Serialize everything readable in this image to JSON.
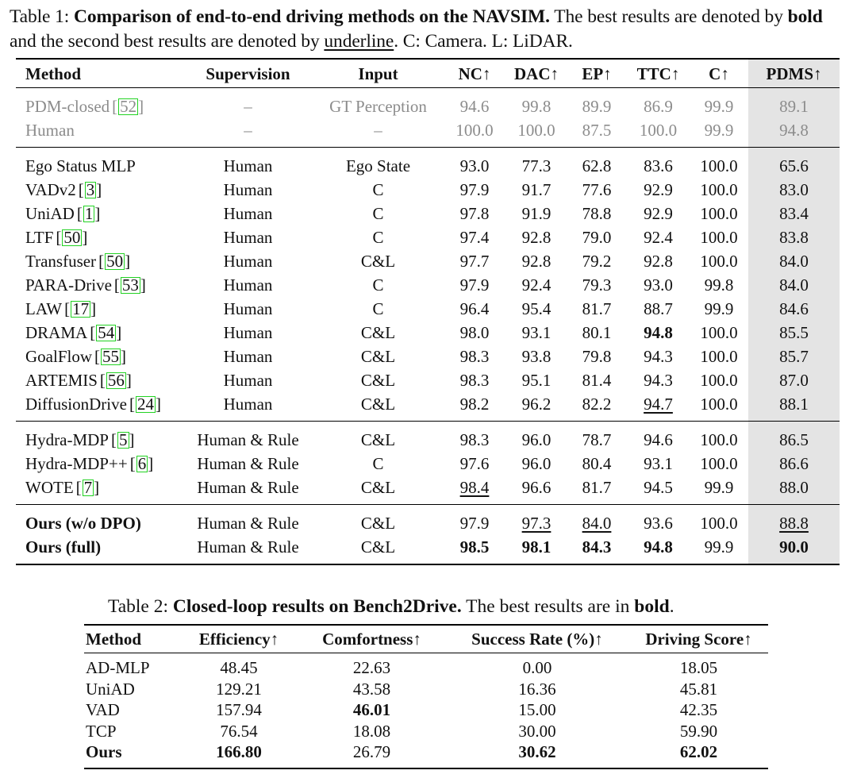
{
  "table1": {
    "caption": {
      "label": "Table 1:",
      "title": "Comparison of end-to-end driving methods on the NAVSIM.",
      "desc1": "The best results are denoted by",
      "bold_word": "bold",
      "desc2": "and the second best results are denoted by",
      "underline_word": "underline",
      "desc3": ". C: Camera. L: LiDAR."
    },
    "headers": [
      "Method",
      "Supervision",
      "Input",
      "NC↑",
      "DAC↑",
      "EP↑",
      "TTC↑",
      "C↑",
      "PDMS↑"
    ],
    "groups": [
      {
        "style": "gray",
        "rows": [
          {
            "method": "PDM-closed",
            "ref": "52",
            "supervision": "–",
            "input": "GT Perception",
            "nc": "94.6",
            "dac": "99.8",
            "ep": "89.9",
            "ttc": "86.9",
            "c": "99.9",
            "pdms": "89.1"
          },
          {
            "method": "Human",
            "ref": "",
            "supervision": "–",
            "input": "–",
            "nc": "100.0",
            "dac": "100.0",
            "ep": "87.5",
            "ttc": "100.0",
            "c": "99.9",
            "pdms": "94.8"
          }
        ]
      },
      {
        "style": "normal",
        "rows": [
          {
            "method": "Ego Status MLP",
            "ref": "",
            "supervision": "Human",
            "input": "Ego State",
            "nc": "93.0",
            "dac": "77.3",
            "ep": "62.8",
            "ttc": "83.6",
            "c": "100.0",
            "pdms": "65.6"
          },
          {
            "method": "VADv2",
            "ref": "3",
            "supervision": "Human",
            "input": "C",
            "nc": "97.9",
            "dac": "91.7",
            "ep": "77.6",
            "ttc": "92.9",
            "c": "100.0",
            "pdms": "83.0"
          },
          {
            "method": "UniAD",
            "ref": "1",
            "supervision": "Human",
            "input": "C",
            "nc": "97.8",
            "dac": "91.9",
            "ep": "78.8",
            "ttc": "92.9",
            "c": "100.0",
            "pdms": "83.4"
          },
          {
            "method": "LTF",
            "ref": "50",
            "supervision": "Human",
            "input": "C",
            "nc": "97.4",
            "dac": "92.8",
            "ep": "79.0",
            "ttc": "92.4",
            "c": "100.0",
            "pdms": "83.8"
          },
          {
            "method": "Transfuser",
            "ref": "50",
            "supervision": "Human",
            "input": "C&L",
            "nc": "97.7",
            "dac": "92.8",
            "ep": "79.2",
            "ttc": "92.8",
            "c": "100.0",
            "pdms": "84.0"
          },
          {
            "method": "PARA-Drive",
            "ref": "53",
            "supervision": "Human",
            "input": "C",
            "nc": "97.9",
            "dac": "92.4",
            "ep": "79.3",
            "ttc": "93.0",
            "c": "99.8",
            "pdms": "84.0"
          },
          {
            "method": "LAW",
            "ref": "17",
            "supervision": "Human",
            "input": "C",
            "nc": "96.4",
            "dac": "95.4",
            "ep": "81.7",
            "ttc": "88.7",
            "c": "99.9",
            "pdms": "84.6"
          },
          {
            "method": "DRAMA",
            "ref": "54",
            "supervision": "Human",
            "input": "C&L",
            "nc": "98.0",
            "dac": "93.1",
            "ep": "80.1",
            "ttc": "94.8",
            "c": "100.0",
            "pdms": "85.5",
            "bold": [
              "ttc"
            ]
          },
          {
            "method": "GoalFlow",
            "ref": "55",
            "supervision": "Human",
            "input": "C&L",
            "nc": "98.3",
            "dac": "93.8",
            "ep": "79.8",
            "ttc": "94.3",
            "c": "100.0",
            "pdms": "85.7"
          },
          {
            "method": "ARTEMIS",
            "ref": "56",
            "supervision": "Human",
            "input": "C&L",
            "nc": "98.3",
            "dac": "95.1",
            "ep": "81.4",
            "ttc": "94.3",
            "c": "100.0",
            "pdms": "87.0"
          },
          {
            "method": "DiffusionDrive",
            "ref": "24",
            "supervision": "Human",
            "input": "C&L",
            "nc": "98.2",
            "dac": "96.2",
            "ep": "82.2",
            "ttc": "94.7",
            "c": "100.0",
            "pdms": "88.1",
            "underline": [
              "ttc"
            ]
          }
        ]
      },
      {
        "style": "normal",
        "rows": [
          {
            "method": "Hydra-MDP",
            "ref": "5",
            "supervision": "Human & Rule",
            "input": "C&L",
            "nc": "98.3",
            "dac": "96.0",
            "ep": "78.7",
            "ttc": "94.6",
            "c": "100.0",
            "pdms": "86.5"
          },
          {
            "method": "Hydra-MDP++",
            "ref": "6",
            "supervision": "Human & Rule",
            "input": "C",
            "nc": "97.6",
            "dac": "96.0",
            "ep": "80.4",
            "ttc": "93.1",
            "c": "100.0",
            "pdms": "86.6"
          },
          {
            "method": "WOTE",
            "ref": "7",
            "supervision": "Human & Rule",
            "input": "C&L",
            "nc": "98.4",
            "dac": "96.6",
            "ep": "81.7",
            "ttc": "94.5",
            "c": "99.9",
            "pdms": "88.0",
            "underline": [
              "nc"
            ]
          }
        ]
      },
      {
        "style": "normal",
        "rows": [
          {
            "method": "Ours (w/o DPO)",
            "ref": "",
            "bold_method": true,
            "supervision": "Human & Rule",
            "input": "C&L",
            "nc": "97.9",
            "dac": "97.3",
            "ep": "84.0",
            "ttc": "93.6",
            "c": "100.0",
            "pdms": "88.8",
            "underline": [
              "dac",
              "ep",
              "pdms"
            ]
          },
          {
            "method": "Ours (full)",
            "ref": "",
            "bold_method": true,
            "supervision": "Human & Rule",
            "input": "C&L",
            "nc": "98.5",
            "dac": "98.1",
            "ep": "84.3",
            "ttc": "94.8",
            "c": "99.9",
            "pdms": "90.0",
            "bold": [
              "nc",
              "dac",
              "ep",
              "ttc",
              "pdms"
            ]
          }
        ]
      }
    ]
  },
  "table2": {
    "caption": {
      "label": "Table 2:",
      "title": "Closed-loop results on Bench2Drive.",
      "desc1": "The best results are in",
      "bold_word": "bold",
      "desc2": "."
    },
    "headers": [
      "Method",
      "Efficiency↑",
      "Comfortness↑",
      "Success Rate (%)↑",
      "Driving Score↑"
    ],
    "rows": [
      {
        "method": "AD-MLP",
        "efficiency": "48.45",
        "comfort": "22.63",
        "success": "0.00",
        "score": "18.05"
      },
      {
        "method": "UniAD",
        "efficiency": "129.21",
        "comfort": "43.58",
        "success": "16.36",
        "score": "45.81"
      },
      {
        "method": "VAD",
        "efficiency": "157.94",
        "comfort": "46.01",
        "success": "15.00",
        "score": "42.35",
        "bold": [
          "comfort"
        ]
      },
      {
        "method": "TCP",
        "efficiency": "76.54",
        "comfort": "18.08",
        "success": "30.00",
        "score": "59.90"
      },
      {
        "method": "Ours",
        "bold_method": true,
        "efficiency": "166.80",
        "comfort": "26.79",
        "success": "30.62",
        "score": "62.02",
        "bold": [
          "efficiency",
          "success",
          "score"
        ]
      }
    ]
  }
}
